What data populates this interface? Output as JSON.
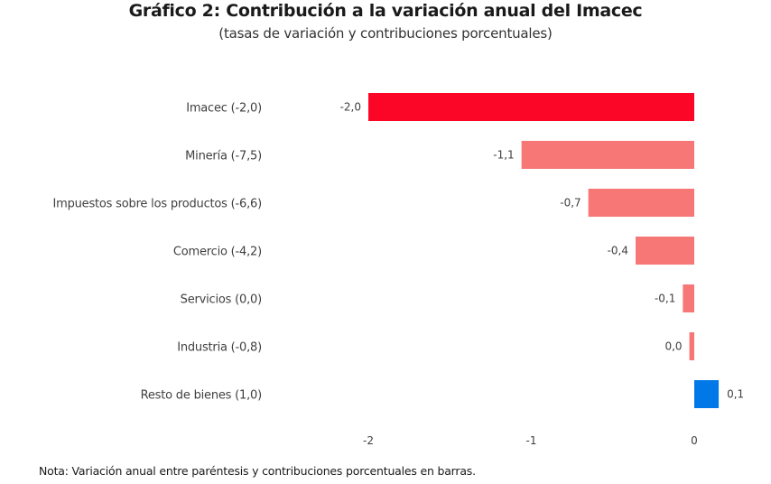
{
  "chart_data": {
    "type": "bar",
    "orientation": "horizontal",
    "title": "Gráfico 2: Contribución a la variación anual del Imacec",
    "subtitle": "(tasas de variación y contribuciones porcentuales)",
    "xlabel": "",
    "ylabel": "",
    "xlim": [
      -2.2,
      0.3
    ],
    "xticks": [
      -2,
      -1,
      0
    ],
    "xtick_labels": [
      "-2",
      "-1",
      "0"
    ],
    "grid": false,
    "categories": [
      "Imacec (-2,0)",
      "Minería (-7,5)",
      "Impuestos sobre los productos (-6,6)",
      "Comercio (-4,2)",
      "Servicios (0,0)",
      "Industria (-0,8)",
      "Resto de bienes (1,0)"
    ],
    "values": [
      -2.0,
      -1.06,
      -0.65,
      -0.36,
      -0.07,
      -0.03,
      0.15
    ],
    "data_labels": [
      "-2,0",
      "-1,1",
      "-0,7",
      "-0,4",
      "-0,1",
      "0,0",
      "0,1"
    ],
    "colors": [
      "#fc0628",
      "#f77676",
      "#f77676",
      "#f77676",
      "#f77676",
      "#f77676",
      "#0078e7"
    ],
    "note": "Nota: Variación anual entre paréntesis y contribuciones porcentuales en barras."
  }
}
